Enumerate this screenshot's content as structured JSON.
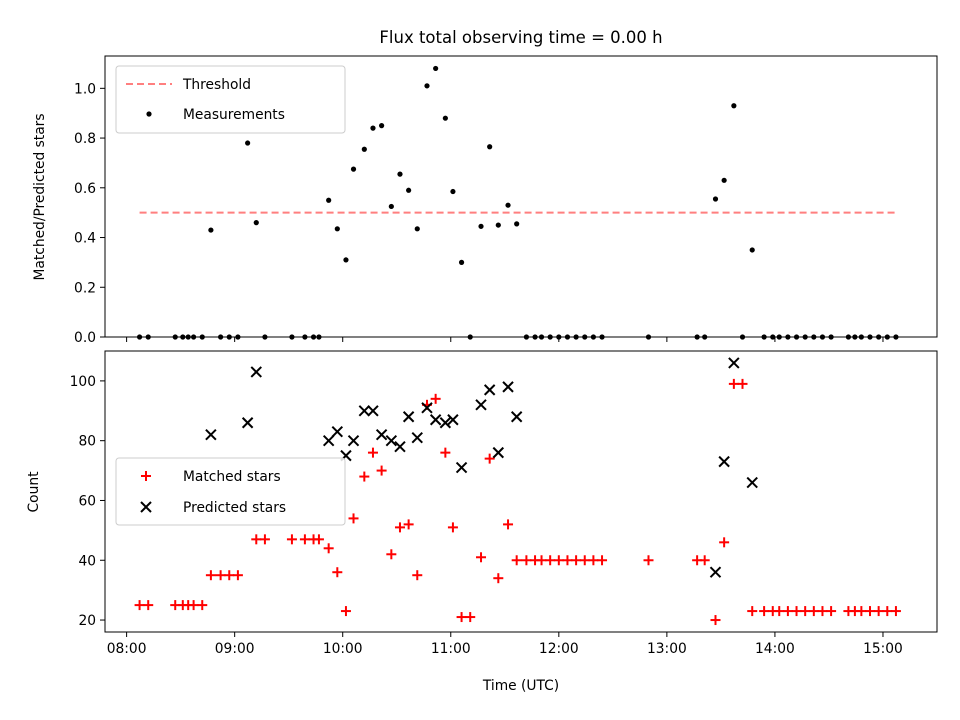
{
  "chart_data": {
    "title": "Flux total observing time = 0.00 h",
    "xlabel": "Time (UTC)",
    "xticks": [
      "08:00",
      "09:00",
      "10:00",
      "11:00",
      "12:00",
      "13:00",
      "14:00",
      "15:00"
    ],
    "xlim": [
      7.8,
      15.5
    ],
    "panels": [
      {
        "type": "scatter",
        "ylabel": "Matched/Predicted stars",
        "ylim": [
          0,
          1.13
        ],
        "yticks": [
          "0.0",
          "0.2",
          "0.4",
          "0.6",
          "0.8",
          "1.0"
        ],
        "legend": "top-left",
        "threshold": {
          "name": "Threshold",
          "y": 0.5,
          "x": [
            8.12,
            15.12
          ],
          "color": "#ff7f7f"
        },
        "series": [
          {
            "name": "Measurements",
            "color": "#000000",
            "points": [
              [
                8.12,
                0
              ],
              [
                8.2,
                0
              ],
              [
                8.45,
                0
              ],
              [
                8.52,
                0
              ],
              [
                8.57,
                0
              ],
              [
                8.62,
                0
              ],
              [
                8.7,
                0
              ],
              [
                8.78,
                0.43
              ],
              [
                8.87,
                0
              ],
              [
                8.95,
                0
              ],
              [
                9.03,
                0
              ],
              [
                9.12,
                0.78
              ],
              [
                9.2,
                0.46
              ],
              [
                9.28,
                0
              ],
              [
                9.53,
                0
              ],
              [
                9.65,
                0
              ],
              [
                9.73,
                0
              ],
              [
                9.78,
                0
              ],
              [
                9.87,
                0.55
              ],
              [
                9.95,
                0.435
              ],
              [
                10.03,
                0.31
              ],
              [
                10.1,
                0.675
              ],
              [
                10.2,
                0.755
              ],
              [
                10.28,
                0.84
              ],
              [
                10.36,
                0.85
              ],
              [
                10.45,
                0.525
              ],
              [
                10.53,
                0.655
              ],
              [
                10.61,
                0.59
              ],
              [
                10.69,
                0.435
              ],
              [
                10.78,
                1.01
              ],
              [
                10.86,
                1.08
              ],
              [
                10.95,
                0.88
              ],
              [
                11.02,
                0.585
              ],
              [
                11.1,
                0.3
              ],
              [
                11.18,
                0
              ],
              [
                11.28,
                0.445
              ],
              [
                11.36,
                0.765
              ],
              [
                11.44,
                0.45
              ],
              [
                11.53,
                0.53
              ],
              [
                11.61,
                0.455
              ],
              [
                11.7,
                0
              ],
              [
                11.78,
                0
              ],
              [
                11.84,
                0
              ],
              [
                11.92,
                0
              ],
              [
                12.0,
                0
              ],
              [
                12.08,
                0
              ],
              [
                12.16,
                0
              ],
              [
                12.24,
                0
              ],
              [
                12.32,
                0
              ],
              [
                12.4,
                0
              ],
              [
                12.83,
                0
              ],
              [
                13.28,
                0
              ],
              [
                13.35,
                0
              ],
              [
                13.45,
                0.555
              ],
              [
                13.53,
                0.63
              ],
              [
                13.62,
                0.93
              ],
              [
                13.7,
                0
              ],
              [
                13.79,
                0.35
              ],
              [
                13.9,
                0
              ],
              [
                13.98,
                0
              ],
              [
                14.04,
                0
              ],
              [
                14.12,
                0
              ],
              [
                14.2,
                0
              ],
              [
                14.28,
                0
              ],
              [
                14.36,
                0
              ],
              [
                14.44,
                0
              ],
              [
                14.52,
                0
              ],
              [
                14.68,
                0
              ],
              [
                14.74,
                0
              ],
              [
                14.8,
                0
              ],
              [
                14.88,
                0
              ],
              [
                14.96,
                0
              ],
              [
                15.04,
                0
              ],
              [
                15.12,
                0
              ]
            ]
          }
        ]
      },
      {
        "type": "scatter",
        "ylabel": "Count",
        "ylim": [
          16,
          110
        ],
        "yticks": [
          "20",
          "40",
          "60",
          "80",
          "100"
        ],
        "legend": "center-left",
        "series": [
          {
            "name": "Matched stars",
            "marker": "plus",
            "color": "#ff0000",
            "points": [
              [
                8.12,
                25
              ],
              [
                8.2,
                25
              ],
              [
                8.45,
                25
              ],
              [
                8.52,
                25
              ],
              [
                8.57,
                25
              ],
              [
                8.62,
                25
              ],
              [
                8.7,
                25
              ],
              [
                8.78,
                35
              ],
              [
                8.87,
                35
              ],
              [
                8.95,
                35
              ],
              [
                9.03,
                35
              ],
              [
                9.2,
                47
              ],
              [
                9.28,
                47
              ],
              [
                9.53,
                47
              ],
              [
                9.65,
                47
              ],
              [
                9.73,
                47
              ],
              [
                9.78,
                47
              ],
              [
                9.87,
                44
              ],
              [
                9.95,
                36
              ],
              [
                10.03,
                23
              ],
              [
                10.1,
                54
              ],
              [
                10.2,
                68
              ],
              [
                10.28,
                76
              ],
              [
                10.36,
                70
              ],
              [
                10.45,
                42
              ],
              [
                10.53,
                51
              ],
              [
                10.61,
                52
              ],
              [
                10.69,
                35
              ],
              [
                10.78,
                92
              ],
              [
                10.86,
                94
              ],
              [
                10.95,
                76
              ],
              [
                11.02,
                51
              ],
              [
                11.1,
                21
              ],
              [
                11.18,
                21
              ],
              [
                11.28,
                41
              ],
              [
                11.36,
                74
              ],
              [
                11.44,
                34
              ],
              [
                11.53,
                52
              ],
              [
                11.61,
                40
              ],
              [
                11.7,
                40
              ],
              [
                11.78,
                40
              ],
              [
                11.84,
                40
              ],
              [
                11.92,
                40
              ],
              [
                12.0,
                40
              ],
              [
                12.08,
                40
              ],
              [
                12.16,
                40
              ],
              [
                12.24,
                40
              ],
              [
                12.32,
                40
              ],
              [
                12.4,
                40
              ],
              [
                12.83,
                40
              ],
              [
                13.28,
                40
              ],
              [
                13.35,
                40
              ],
              [
                13.45,
                20
              ],
              [
                13.53,
                46
              ],
              [
                13.62,
                99
              ],
              [
                13.7,
                99
              ],
              [
                13.79,
                23
              ],
              [
                13.9,
                23
              ],
              [
                13.98,
                23
              ],
              [
                14.04,
                23
              ],
              [
                14.12,
                23
              ],
              [
                14.2,
                23
              ],
              [
                14.28,
                23
              ],
              [
                14.36,
                23
              ],
              [
                14.44,
                23
              ],
              [
                14.52,
                23
              ],
              [
                14.68,
                23
              ],
              [
                14.74,
                23
              ],
              [
                14.8,
                23
              ],
              [
                14.88,
                23
              ],
              [
                14.96,
                23
              ],
              [
                15.04,
                23
              ],
              [
                15.12,
                23
              ]
            ]
          },
          {
            "name": "Predicted stars",
            "marker": "x",
            "color": "#000000",
            "points": [
              [
                8.78,
                82
              ],
              [
                9.12,
                86
              ],
              [
                9.2,
                103
              ],
              [
                9.87,
                80
              ],
              [
                9.95,
                83
              ],
              [
                10.03,
                75
              ],
              [
                10.1,
                80
              ],
              [
                10.2,
                90
              ],
              [
                10.28,
                90
              ],
              [
                10.36,
                82
              ],
              [
                10.45,
                80
              ],
              [
                10.53,
                78
              ],
              [
                10.61,
                88
              ],
              [
                10.69,
                81
              ],
              [
                10.78,
                91
              ],
              [
                10.86,
                87
              ],
              [
                10.95,
                86
              ],
              [
                11.02,
                87
              ],
              [
                11.1,
                71
              ],
              [
                11.28,
                92
              ],
              [
                11.36,
                97
              ],
              [
                11.44,
                76
              ],
              [
                11.53,
                98
              ],
              [
                11.61,
                88
              ],
              [
                13.45,
                36
              ],
              [
                13.53,
                73
              ],
              [
                13.62,
                106
              ],
              [
                13.79,
                66
              ]
            ]
          }
        ]
      }
    ]
  }
}
